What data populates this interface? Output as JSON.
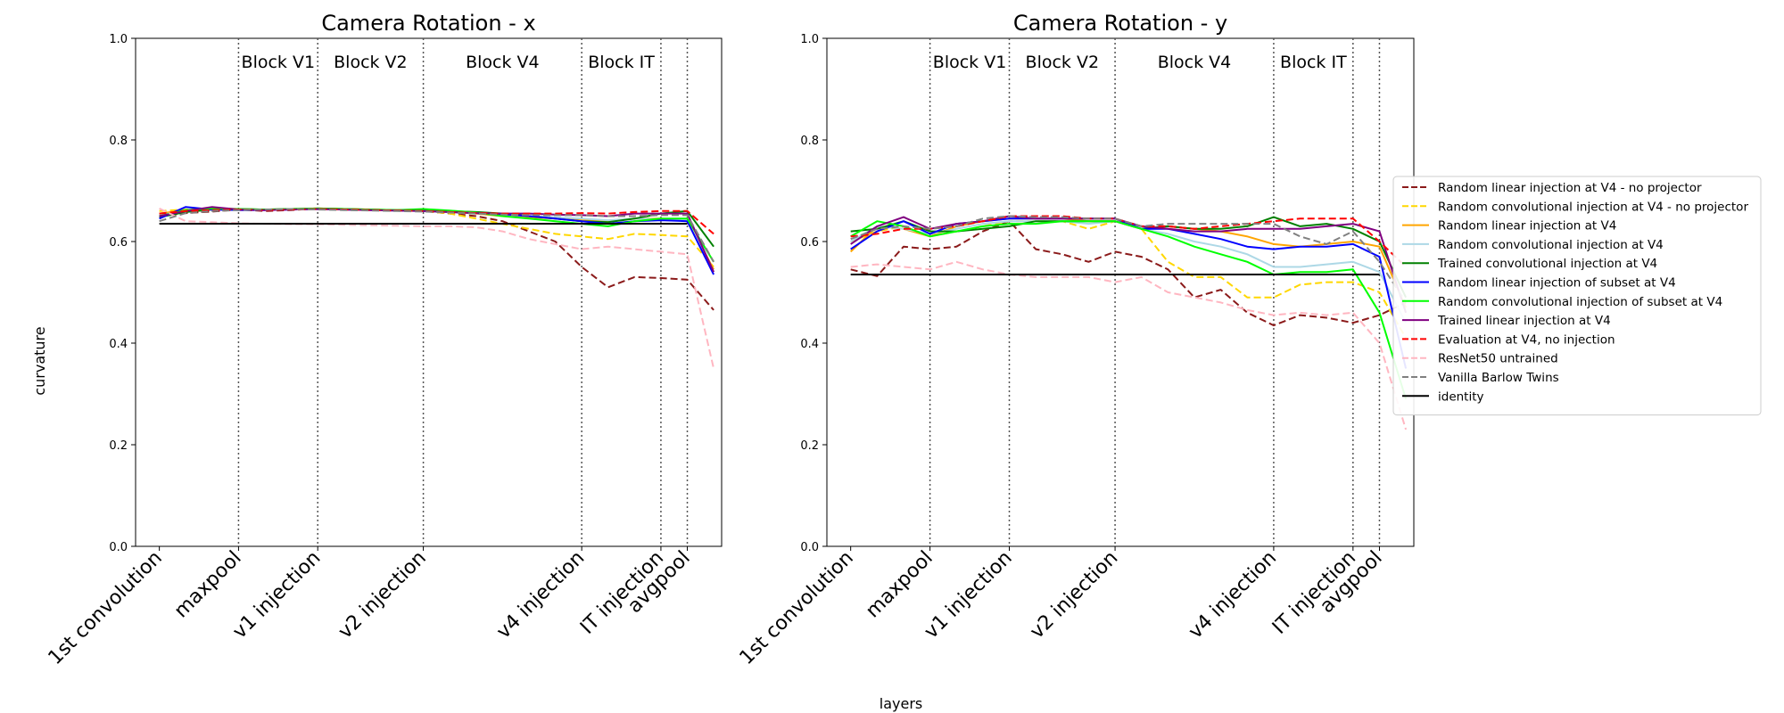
{
  "figure": {
    "ylabel": "curvature",
    "xlabel": "layers"
  },
  "chart_data": [
    {
      "type": "line",
      "title": "Camera Rotation - x",
      "ylim": [
        0.0,
        1.0
      ],
      "yticks": [
        "0.0",
        "0.2",
        "0.4",
        "0.6",
        "0.8",
        "1.0"
      ],
      "xticks": [
        {
          "x": 0,
          "label": "1st convolution"
        },
        {
          "x": 3,
          "label": "maxpool"
        },
        {
          "x": 6,
          "label": "v1 injection"
        },
        {
          "x": 10,
          "label": "v2 injection"
        },
        {
          "x": 16,
          "label": "v4 injection"
        },
        {
          "x": 19,
          "label": "IT injection"
        },
        {
          "x": 20,
          "label": "avgpool"
        }
      ],
      "blocks": [
        {
          "label": "Block V1",
          "x": 4.5
        },
        {
          "label": "Block V2",
          "x": 8
        },
        {
          "label": "Block V4",
          "x": 13
        },
        {
          "label": "Block IT",
          "x": 17.5
        }
      ],
      "identity": 0.635,
      "series": [
        {
          "name": "Random linear injection at V4 - no projector",
          "color": "#8b1a1a",
          "dash": true,
          "values": [
            0.65,
            0.656,
            0.659,
            0.663,
            0.66,
            0.662,
            0.665,
            0.664,
            0.662,
            0.661,
            0.66,
            0.655,
            0.65,
            0.64,
            0.62,
            0.6,
            0.55,
            0.51,
            0.53,
            0.528,
            0.525,
            0.465
          ]
        },
        {
          "name": "Random convolutional injection at V4 - no projector",
          "color": "#ffd700",
          "dash": true,
          "values": [
            0.66,
            0.663,
            0.664,
            0.663,
            0.662,
            0.663,
            0.664,
            0.663,
            0.662,
            0.661,
            0.66,
            0.655,
            0.645,
            0.635,
            0.625,
            0.615,
            0.61,
            0.605,
            0.615,
            0.613,
            0.61,
            0.55
          ]
        },
        {
          "name": "Random linear injection at V4",
          "color": "#ffa500",
          "dash": false,
          "values": [
            0.655,
            0.662,
            0.665,
            0.664,
            0.663,
            0.664,
            0.665,
            0.664,
            0.663,
            0.662,
            0.661,
            0.658,
            0.655,
            0.65,
            0.648,
            0.645,
            0.642,
            0.64,
            0.645,
            0.645,
            0.643,
            0.545
          ]
        },
        {
          "name": "Random convolutional injection at V4",
          "color": "#add8e6",
          "dash": false,
          "values": [
            0.652,
            0.66,
            0.663,
            0.664,
            0.663,
            0.664,
            0.664,
            0.663,
            0.662,
            0.661,
            0.66,
            0.658,
            0.656,
            0.653,
            0.65,
            0.648,
            0.645,
            0.642,
            0.645,
            0.644,
            0.642,
            0.54
          ]
        },
        {
          "name": "Trained convolutional injection at V4",
          "color": "#008000",
          "dash": false,
          "values": [
            0.648,
            0.658,
            0.663,
            0.664,
            0.663,
            0.664,
            0.665,
            0.664,
            0.663,
            0.662,
            0.661,
            0.66,
            0.658,
            0.655,
            0.65,
            0.645,
            0.64,
            0.638,
            0.645,
            0.655,
            0.66,
            0.59
          ]
        },
        {
          "name": "Random linear injection of subset at V4",
          "color": "#0000ff",
          "dash": false,
          "values": [
            0.645,
            0.668,
            0.663,
            0.662,
            0.662,
            0.663,
            0.664,
            0.663,
            0.662,
            0.661,
            0.66,
            0.658,
            0.656,
            0.654,
            0.65,
            0.645,
            0.64,
            0.635,
            0.64,
            0.642,
            0.64,
            0.535
          ]
        },
        {
          "name": "Random convolutional injection of subset at V4",
          "color": "#00ff00",
          "dash": false,
          "values": [
            0.65,
            0.662,
            0.665,
            0.664,
            0.663,
            0.664,
            0.665,
            0.664,
            0.663,
            0.662,
            0.664,
            0.661,
            0.657,
            0.65,
            0.645,
            0.64,
            0.635,
            0.63,
            0.64,
            0.645,
            0.645,
            0.56
          ]
        },
        {
          "name": "Trained linear injection at V4",
          "color": "#800080",
          "dash": false,
          "values": [
            0.65,
            0.66,
            0.668,
            0.663,
            0.662,
            0.663,
            0.664,
            0.663,
            0.662,
            0.661,
            0.66,
            0.658,
            0.656,
            0.655,
            0.655,
            0.653,
            0.652,
            0.65,
            0.655,
            0.655,
            0.655,
            0.54
          ]
        },
        {
          "name": "Evaluation at V4, no injection",
          "color": "#ff0000",
          "dash": true,
          "values": [
            0.655,
            0.66,
            0.662,
            0.663,
            0.662,
            0.663,
            0.664,
            0.663,
            0.662,
            0.661,
            0.66,
            0.658,
            0.656,
            0.655,
            0.655,
            0.655,
            0.656,
            0.655,
            0.658,
            0.66,
            0.66,
            0.615
          ]
        },
        {
          "name": "ResNet50 untrained",
          "color": "#ffb6c1",
          "dash": true,
          "values": [
            0.665,
            0.64,
            0.638,
            0.636,
            0.635,
            0.634,
            0.634,
            0.633,
            0.632,
            0.631,
            0.63,
            0.63,
            0.628,
            0.62,
            0.605,
            0.595,
            0.585,
            0.59,
            0.585,
            0.58,
            0.575,
            0.35
          ]
        },
        {
          "name": "Vanilla Barlow Twins",
          "color": "#808080",
          "dash": true,
          "values": [
            0.64,
            0.656,
            0.66,
            0.662,
            0.663,
            0.664,
            0.663,
            0.662,
            0.661,
            0.66,
            0.659,
            0.657,
            0.655,
            0.653,
            0.652,
            0.652,
            0.652,
            0.65,
            0.65,
            0.652,
            0.652,
            0.56
          ]
        }
      ]
    },
    {
      "type": "line",
      "title": "Camera Rotation - y",
      "ylim": [
        0.0,
        1.0
      ],
      "yticks": [
        "0.0",
        "0.2",
        "0.4",
        "0.6",
        "0.8",
        "1.0"
      ],
      "xticks": [
        {
          "x": 0,
          "label": "1st convolution"
        },
        {
          "x": 3,
          "label": "maxpool"
        },
        {
          "x": 6,
          "label": "v1 injection"
        },
        {
          "x": 10,
          "label": "v2 injection"
        },
        {
          "x": 16,
          "label": "v4 injection"
        },
        {
          "x": 19,
          "label": "IT injection"
        },
        {
          "x": 20,
          "label": "avgpool"
        }
      ],
      "blocks": [
        {
          "label": "Block V1",
          "x": 4.5
        },
        {
          "label": "Block V2",
          "x": 8
        },
        {
          "label": "Block V4",
          "x": 13
        },
        {
          "label": "Block IT",
          "x": 17.5
        }
      ],
      "identity": 0.535,
      "series": [
        {
          "name": "Random linear injection at V4 - no projector",
          "color": "#8b1a1a",
          "dash": true,
          "values": [
            0.545,
            0.532,
            0.59,
            0.585,
            0.59,
            0.62,
            0.64,
            0.585,
            0.575,
            0.56,
            0.58,
            0.57,
            0.545,
            0.49,
            0.505,
            0.46,
            0.435,
            0.455,
            0.45,
            0.44,
            0.455,
            0.48
          ]
        },
        {
          "name": "Random convolutional injection at V4 - no projector",
          "color": "#ffd700",
          "dash": true,
          "values": [
            0.6,
            0.62,
            0.63,
            0.61,
            0.62,
            0.63,
            0.64,
            0.64,
            0.64,
            0.625,
            0.64,
            0.625,
            0.56,
            0.53,
            0.53,
            0.49,
            0.49,
            0.515,
            0.52,
            0.52,
            0.5,
            0.41
          ]
        },
        {
          "name": "Random linear injection at V4",
          "color": "#ffa500",
          "dash": false,
          "values": [
            0.58,
            0.63,
            0.625,
            0.61,
            0.63,
            0.64,
            0.645,
            0.645,
            0.645,
            0.64,
            0.64,
            0.625,
            0.63,
            0.625,
            0.62,
            0.61,
            0.595,
            0.59,
            0.595,
            0.6,
            0.59,
            0.47
          ]
        },
        {
          "name": "Random convolutional injection at V4",
          "color": "#add8e6",
          "dash": false,
          "values": [
            0.6,
            0.63,
            0.625,
            0.615,
            0.625,
            0.635,
            0.64,
            0.64,
            0.64,
            0.635,
            0.64,
            0.625,
            0.615,
            0.6,
            0.59,
            0.575,
            0.55,
            0.55,
            0.555,
            0.56,
            0.54,
            0.44
          ]
        },
        {
          "name": "Trained convolutional injection at V4",
          "color": "#008000",
          "dash": false,
          "values": [
            0.62,
            0.625,
            0.64,
            0.62,
            0.62,
            0.625,
            0.63,
            0.64,
            0.64,
            0.64,
            0.64,
            0.625,
            0.63,
            0.625,
            0.625,
            0.63,
            0.648,
            0.63,
            0.635,
            0.625,
            0.6,
            0.49
          ]
        },
        {
          "name": "Random linear injection of subset at V4",
          "color": "#0000ff",
          "dash": false,
          "values": [
            0.585,
            0.62,
            0.64,
            0.615,
            0.635,
            0.64,
            0.645,
            0.645,
            0.645,
            0.645,
            0.645,
            0.625,
            0.625,
            0.615,
            0.605,
            0.59,
            0.585,
            0.59,
            0.59,
            0.595,
            0.57,
            0.35
          ]
        },
        {
          "name": "Random convolutional injection of subset at V4",
          "color": "#00ff00",
          "dash": false,
          "values": [
            0.61,
            0.64,
            0.63,
            0.61,
            0.62,
            0.63,
            0.635,
            0.635,
            0.64,
            0.64,
            0.64,
            0.625,
            0.61,
            0.59,
            0.575,
            0.56,
            0.535,
            0.54,
            0.54,
            0.545,
            0.46,
            0.29
          ]
        },
        {
          "name": "Trained linear injection at V4",
          "color": "#800080",
          "dash": false,
          "values": [
            0.595,
            0.63,
            0.648,
            0.625,
            0.635,
            0.64,
            0.65,
            0.645,
            0.645,
            0.645,
            0.645,
            0.63,
            0.625,
            0.62,
            0.62,
            0.625,
            0.625,
            0.625,
            0.63,
            0.635,
            0.62,
            0.46
          ]
        },
        {
          "name": "Evaluation at V4, no injection",
          "color": "#ff0000",
          "dash": true,
          "values": [
            0.61,
            0.615,
            0.625,
            0.625,
            0.63,
            0.64,
            0.65,
            0.65,
            0.65,
            0.645,
            0.645,
            0.63,
            0.63,
            0.625,
            0.63,
            0.635,
            0.64,
            0.645,
            0.645,
            0.645,
            0.6,
            0.55
          ]
        },
        {
          "name": "ResNet50 untrained",
          "color": "#ffb6c1",
          "dash": true,
          "values": [
            0.55,
            0.555,
            0.55,
            0.545,
            0.56,
            0.545,
            0.535,
            0.53,
            0.53,
            0.53,
            0.52,
            0.53,
            0.5,
            0.49,
            0.48,
            0.465,
            0.455,
            0.46,
            0.455,
            0.46,
            0.4,
            0.23
          ]
        },
        {
          "name": "Vanilla Barlow Twins",
          "color": "#808080",
          "dash": true,
          "values": [
            0.605,
            0.625,
            0.63,
            0.625,
            0.63,
            0.645,
            0.65,
            0.648,
            0.648,
            0.645,
            0.645,
            0.63,
            0.635,
            0.635,
            0.635,
            0.635,
            0.635,
            0.61,
            0.595,
            0.62,
            0.56,
            0.48
          ]
        }
      ]
    }
  ],
  "legend": {
    "placement": "center-right",
    "entries": [
      {
        "label": "Random linear injection at V4 - no projector",
        "color": "#8b1a1a",
        "dash": true
      },
      {
        "label": "Random convolutional injection at V4 - no projector",
        "color": "#ffd700",
        "dash": true
      },
      {
        "label": "Random linear injection at V4",
        "color": "#ffa500",
        "dash": false
      },
      {
        "label": "Random convolutional injection at V4",
        "color": "#add8e6",
        "dash": false
      },
      {
        "label": "Trained convolutional injection at V4",
        "color": "#008000",
        "dash": false
      },
      {
        "label": "Random linear injection of subset at V4",
        "color": "#0000ff",
        "dash": false
      },
      {
        "label": "Random convolutional injection of subset at V4",
        "color": "#00ff00",
        "dash": false
      },
      {
        "label": "Trained linear injection at V4",
        "color": "#800080",
        "dash": false
      },
      {
        "label": "Evaluation at V4, no injection",
        "color": "#ff0000",
        "dash": true
      },
      {
        "label": "ResNet50 untrained",
        "color": "#ffb6c1",
        "dash": true
      },
      {
        "label": "Vanilla Barlow Twins",
        "color": "#808080",
        "dash": true
      },
      {
        "label": "identity",
        "color": "#000000",
        "dash": false
      }
    ]
  }
}
